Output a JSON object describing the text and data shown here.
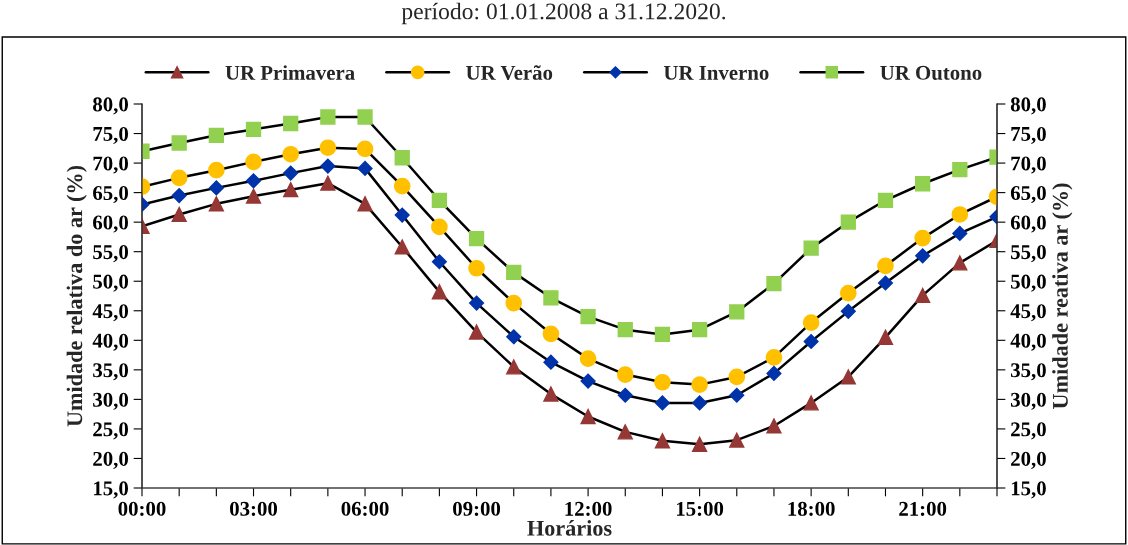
{
  "chart_data": {
    "type": "line",
    "title": "período: 01.01.2008 a 31.12.2020.",
    "xlabel": "Horários",
    "ylabel": "Umidade relativa do ar (%)",
    "y2label": "Umidade reativa ar (%)",
    "categories": [
      "00:00",
      null,
      null,
      "03:00",
      null,
      null,
      "06:00",
      null,
      null,
      "09:00",
      null,
      null,
      "12:00",
      null,
      null,
      "15:00",
      null,
      null,
      "18:00",
      null,
      null,
      "21:00",
      null,
      null
    ],
    "series": [
      {
        "name": "UR Primavera",
        "color": "#953735",
        "marker": "triangle",
        "values": [
          59.3,
          61.3,
          63.1,
          64.4,
          65.5,
          66.6,
          63.1,
          55.8,
          48.2,
          41.4,
          35.5,
          30.9,
          27.1,
          24.5,
          23.0,
          22.4,
          23.1,
          25.5,
          29.4,
          33.8,
          40.5,
          47.6,
          53.1,
          56.9
        ]
      },
      {
        "name": "UR Verão",
        "color": "#ffc000",
        "marker": "circle",
        "values": [
          66.0,
          67.5,
          68.8,
          70.2,
          71.5,
          72.6,
          72.4,
          66.1,
          59.2,
          52.2,
          46.3,
          41.1,
          36.9,
          34.2,
          32.9,
          32.5,
          33.8,
          37.1,
          43.0,
          48.0,
          52.6,
          57.3,
          61.3,
          64.3
        ]
      },
      {
        "name": "UR Inverno",
        "color": "#0033aa",
        "marker": "diamond",
        "values": [
          63.0,
          64.5,
          65.8,
          67.0,
          68.3,
          69.5,
          69.1,
          61.2,
          53.3,
          46.3,
          40.6,
          36.3,
          33.1,
          30.7,
          29.4,
          29.4,
          30.7,
          34.4,
          39.8,
          44.9,
          49.7,
          54.3,
          58.1,
          60.9
        ]
      },
      {
        "name": "UR Outono",
        "color": "#92d050",
        "marker": "square",
        "values": [
          72.0,
          73.4,
          74.7,
          75.7,
          76.7,
          77.8,
          77.8,
          70.9,
          63.7,
          57.2,
          51.5,
          47.2,
          44.0,
          41.8,
          41.0,
          41.8,
          44.8,
          49.6,
          55.6,
          60.0,
          63.7,
          66.5,
          68.9,
          71.0
        ]
      }
    ],
    "ylim": [
      15,
      80
    ],
    "yticks": [
      {
        "value": 15,
        "label": "15,0"
      },
      {
        "value": 20,
        "label": "20,0"
      },
      {
        "value": 25,
        "label": "25,0"
      },
      {
        "value": 30,
        "label": "30,0"
      },
      {
        "value": 35,
        "label": "35,0"
      },
      {
        "value": 40,
        "label": "40,0"
      },
      {
        "value": 45,
        "label": "45,0"
      },
      {
        "value": 50,
        "label": "50,0"
      },
      {
        "value": 55,
        "label": "55,0"
      },
      {
        "value": 60,
        "label": "60,0"
      },
      {
        "value": 65,
        "label": "65,0"
      },
      {
        "value": 70,
        "label": "70,0"
      },
      {
        "value": 75,
        "label": "75,0"
      },
      {
        "value": 80,
        "label": "80,0"
      }
    ],
    "y2lim": [
      15,
      80
    ],
    "y2ticks": [
      {
        "value": 15,
        "label": "15,0"
      },
      {
        "value": 20,
        "label": "20,0"
      },
      {
        "value": 25,
        "label": "25,0"
      },
      {
        "value": 30,
        "label": "30,0"
      },
      {
        "value": 35,
        "label": "35,0"
      },
      {
        "value": 40,
        "label": "40,0"
      },
      {
        "value": 45,
        "label": "45,0"
      },
      {
        "value": 50,
        "label": "50,0"
      },
      {
        "value": 55,
        "label": "55,0"
      },
      {
        "value": 60,
        "label": "60,0"
      },
      {
        "value": 65,
        "label": "65,0"
      },
      {
        "value": 70,
        "label": "70,0"
      },
      {
        "value": 75,
        "label": "75,0"
      },
      {
        "value": 80,
        "label": "80,0"
      }
    ],
    "grid": false,
    "legend": "top",
    "line_style": "solid"
  }
}
